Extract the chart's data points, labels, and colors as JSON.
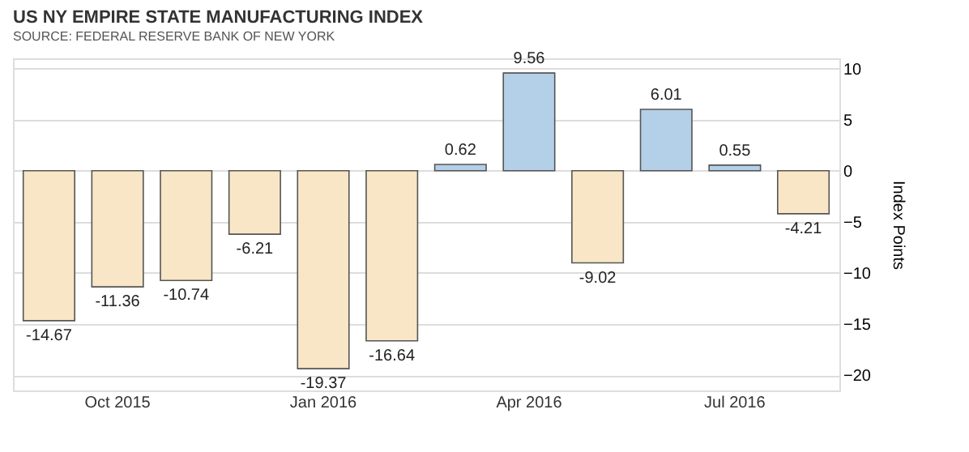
{
  "chart_data": {
    "type": "bar",
    "title": "US NY EMPIRE STATE MANUFACTURING INDEX",
    "ylabel": "Index Points",
    "categories": [
      null,
      "Oct 2015",
      null,
      null,
      "Jan 2016",
      null,
      null,
      "Apr 2016",
      null,
      null,
      "Jul 2016",
      null
    ],
    "values": [
      -14.67,
      -11.36,
      -10.74,
      -6.21,
      -19.37,
      -16.64,
      0.62,
      9.56,
      -9.02,
      6.01,
      0.55,
      -4.21
    ],
    "colors": [
      "#f8e6c6",
      "#f8e6c6",
      "#f8e6c6",
      "#f8e6c6",
      "#f8e6c6",
      "#f8e6c6",
      "#b4cfe8",
      "#b4cfe8",
      "#f8e6c6",
      "#b4cfe8",
      "#b4cfe8",
      "#f8e6c6"
    ],
    "ylim": [
      -21.5,
      11
    ],
    "yticks": [
      -20,
      -15,
      -10,
      -5,
      0,
      5,
      10
    ],
    "grid": "y",
    "data_labels": true,
    "annotations": [
      "SOURCE: FEDERAL RESERVE BANK OF NEW YORK"
    ]
  }
}
